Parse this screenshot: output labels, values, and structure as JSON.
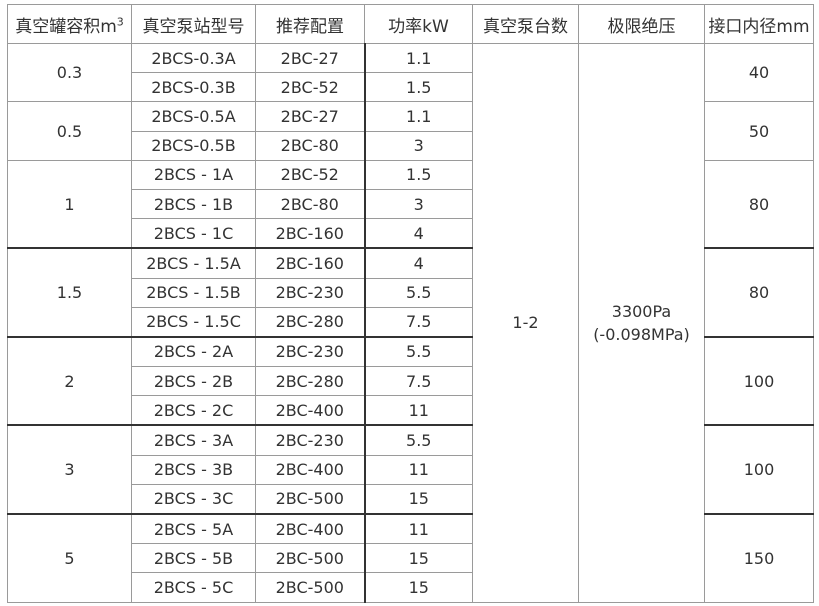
{
  "headers": {
    "tank_volume": "真空罐容积m",
    "tank_volume_sup": "3",
    "station_model": "真空泵站型号",
    "recommended": "推荐配置",
    "power": "功率kW",
    "pump_count": "真空泵台数",
    "ultimate_pressure": "极限绝压",
    "port_diameter": "接口内径mm"
  },
  "pump_count": "1-2",
  "ultimate_pressure": [
    "3300Pa",
    "(-0.098MPa)"
  ],
  "groups": [
    {
      "volume": "0.3",
      "port": "40",
      "rows": [
        [
          "2BCS-0.3A",
          "2BC-27",
          "1.1"
        ],
        [
          "2BCS-0.3B",
          "2BC-52",
          "1.5"
        ]
      ]
    },
    {
      "volume": "0.5",
      "port": "50",
      "rows": [
        [
          "2BCS-0.5A",
          "2BC-27",
          "1.1"
        ],
        [
          "2BCS-0.5B",
          "2BC-80",
          "3"
        ]
      ]
    },
    {
      "volume": "1",
      "port": "80",
      "rows": [
        [
          "2BCS - 1A",
          "2BC-52",
          "1.5"
        ],
        [
          "2BCS - 1B",
          "2BC-80",
          "3"
        ],
        [
          "2BCS - 1C",
          "2BC-160",
          "4"
        ]
      ]
    },
    {
      "volume": "1.5",
      "port": "80",
      "rows": [
        [
          "2BCS - 1.5A",
          "2BC-160",
          "4"
        ],
        [
          "2BCS - 1.5B",
          "2BC-230",
          "5.5"
        ],
        [
          "2BCS - 1.5C",
          "2BC-280",
          "7.5"
        ]
      ]
    },
    {
      "volume": "2",
      "port": "100",
      "rows": [
        [
          "2BCS - 2A",
          "2BC-230",
          "5.5"
        ],
        [
          "2BCS - 2B",
          "2BC-280",
          "7.5"
        ],
        [
          "2BCS - 2C",
          "2BC-400",
          "11"
        ]
      ]
    },
    {
      "volume": "3",
      "port": "100",
      "rows": [
        [
          "2BCS - 3A",
          "2BC-230",
          "5.5"
        ],
        [
          "2BCS - 3B",
          "2BC-400",
          "11"
        ],
        [
          "2BCS - 3C",
          "2BC-500",
          "15"
        ]
      ]
    },
    {
      "volume": "5",
      "port": "150",
      "rows": [
        [
          "2BCS - 5A",
          "2BC-400",
          "11"
        ],
        [
          "2BCS - 5B",
          "2BC-500",
          "15"
        ],
        [
          "2BCS - 5C",
          "2BC-500",
          "15"
        ]
      ]
    }
  ]
}
